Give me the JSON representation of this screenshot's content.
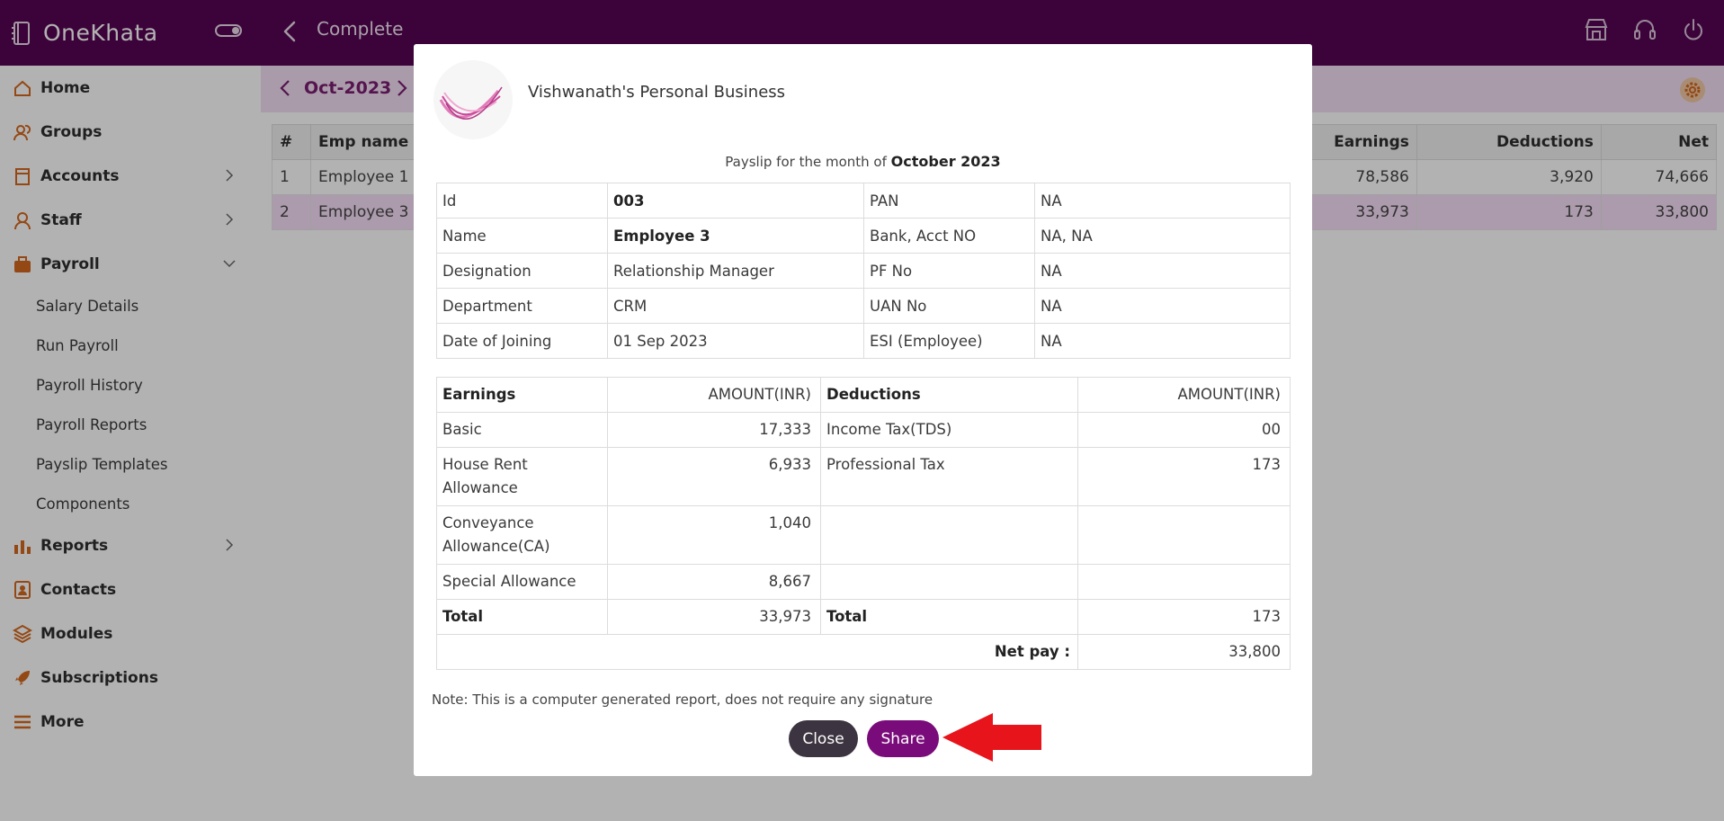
{
  "app": {
    "name": "OneKhata",
    "page_title": "Complete"
  },
  "sidebar": {
    "items": [
      {
        "label": "Home",
        "icon": "home-icon"
      },
      {
        "label": "Groups",
        "icon": "groups-icon"
      },
      {
        "label": "Accounts",
        "icon": "accounts-icon"
      },
      {
        "label": "Staff",
        "icon": "staff-icon"
      },
      {
        "label": "Payroll",
        "icon": "payroll-icon"
      },
      {
        "label": "Reports",
        "icon": "reports-icon"
      },
      {
        "label": "Contacts",
        "icon": "contacts-icon"
      },
      {
        "label": "Modules",
        "icon": "modules-icon"
      },
      {
        "label": "Subscriptions",
        "icon": "subscriptions-icon"
      },
      {
        "label": "More",
        "icon": "menu-icon"
      }
    ],
    "payroll_sub": [
      "Salary Details",
      "Run Payroll",
      "Payroll History",
      "Payroll Reports",
      "Payslip Templates",
      "Components"
    ]
  },
  "main": {
    "month": "Oct-2023",
    "table": {
      "headers": [
        "#",
        "Emp name",
        "Earnings",
        "Deductions",
        "Net"
      ],
      "rows": [
        {
          "no": "1",
          "name": "Employee 1",
          "earnings": "78,586",
          "deductions": "3,920",
          "net": "74,666"
        },
        {
          "no": "2",
          "name": "Employee 3",
          "earnings": "33,973",
          "deductions": "173",
          "net": "33,800"
        }
      ]
    }
  },
  "payslip": {
    "business_name": "Vishwanath's Personal Business",
    "caption_prefix": "Payslip for the month of",
    "caption_month": "October 2023",
    "info": {
      "id_label": "Id",
      "id_value": "003",
      "pan_label": "PAN",
      "pan_value": "NA",
      "name_label": "Name",
      "name_value": "Employee 3",
      "bank_label": "Bank, Acct NO",
      "bank_value": "NA, NA",
      "designation_label": "Designation",
      "designation_value": "Relationship Manager",
      "pf_label": "PF No",
      "pf_value": "NA",
      "department_label": "Department",
      "department_value": "CRM",
      "uan_label": "UAN No",
      "uan_value": "NA",
      "doj_label": "Date of Joining",
      "doj_value": "01 Sep 2023",
      "esi_label": "ESI (Employee)",
      "esi_value": "NA"
    },
    "pay": {
      "earnings_header": "Earnings",
      "deductions_header": "Deductions",
      "amount_header": "AMOUNT(INR)",
      "rows": [
        {
          "earning": "Basic",
          "earning_amt": "17,333",
          "deduction": "Income Tax(TDS)",
          "deduction_amt": "00"
        },
        {
          "earning": "House Rent Allowance",
          "earning_amt": "6,933",
          "deduction": "Professional Tax",
          "deduction_amt": "173"
        },
        {
          "earning": "Conveyance Allowance(CA)",
          "earning_amt": "1,040",
          "deduction": "",
          "deduction_amt": ""
        },
        {
          "earning": "Special Allowance",
          "earning_amt": "8,667",
          "deduction": "",
          "deduction_amt": ""
        }
      ],
      "total_label": "Total",
      "earnings_total": "33,973",
      "deductions_total": "173",
      "net_pay_label": "Net pay :",
      "net_pay_value": "33,800"
    },
    "note": "Note: This is a computer generated report, does not require any signature",
    "close_label": "Close",
    "share_label": "Share"
  },
  "colors": {
    "topbar": "#560554",
    "accent": "#7a0b7a",
    "sidebar_icon": "#d4681e",
    "annotation_arrow": "#e8141c"
  }
}
